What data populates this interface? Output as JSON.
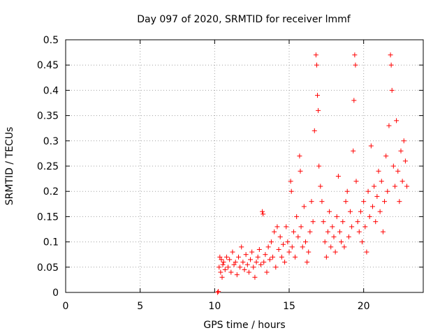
{
  "chart_data": {
    "type": "scatter",
    "title": "Day 097 of 2020, SRMTID for receiver lmmf",
    "xlabel": "GPS time / hours",
    "ylabel": "SRMTID / TECUs",
    "xlim": [
      0,
      24
    ],
    "ylim": [
      0,
      0.5
    ],
    "x_ticks": [
      0,
      5,
      10,
      15,
      20
    ],
    "x_tick_labels": [
      "0",
      "5",
      "10",
      "15",
      "20"
    ],
    "y_ticks": [
      0,
      0.05,
      0.1,
      0.15,
      0.2,
      0.25,
      0.3,
      0.35,
      0.4,
      0.45,
      0.5
    ],
    "y_tick_labels": [
      "0",
      "0.05",
      "0.1",
      "0.15",
      "0.2",
      "0.25",
      "0.3",
      "0.35",
      "0.4",
      "0.45",
      "0.5"
    ],
    "grid": true,
    "marker": "+",
    "series": [
      {
        "name": "SRMTID",
        "color": "#ff0000",
        "points": [
          [
            10.2,
            0.0
          ],
          [
            10.25,
            0.002
          ],
          [
            10.3,
            0.05
          ],
          [
            10.35,
            0.07
          ],
          [
            10.4,
            0.04
          ],
          [
            10.45,
            0.065
          ],
          [
            10.5,
            0.03
          ],
          [
            10.55,
            0.055
          ],
          [
            10.6,
            0.06
          ],
          [
            10.7,
            0.045
          ],
          [
            10.8,
            0.07
          ],
          [
            10.9,
            0.05
          ],
          [
            11.0,
            0.065
          ],
          [
            11.1,
            0.04
          ],
          [
            11.2,
            0.08
          ],
          [
            11.3,
            0.055
          ],
          [
            11.4,
            0.06
          ],
          [
            11.5,
            0.035
          ],
          [
            11.6,
            0.07
          ],
          [
            11.7,
            0.05
          ],
          [
            11.8,
            0.09
          ],
          [
            11.9,
            0.06
          ],
          [
            12.0,
            0.045
          ],
          [
            12.1,
            0.075
          ],
          [
            12.2,
            0.055
          ],
          [
            12.3,
            0.04
          ],
          [
            12.4,
            0.065
          ],
          [
            12.5,
            0.08
          ],
          [
            12.6,
            0.05
          ],
          [
            12.7,
            0.03
          ],
          [
            12.8,
            0.06
          ],
          [
            12.9,
            0.07
          ],
          [
            13.0,
            0.085
          ],
          [
            13.1,
            0.055
          ],
          [
            13.2,
            0.16
          ],
          [
            13.25,
            0.155
          ],
          [
            13.3,
            0.06
          ],
          [
            13.4,
            0.075
          ],
          [
            13.5,
            0.04
          ],
          [
            13.6,
            0.09
          ],
          [
            13.7,
            0.065
          ],
          [
            13.8,
            0.1
          ],
          [
            13.9,
            0.07
          ],
          [
            14.0,
            0.12
          ],
          [
            14.1,
            0.05
          ],
          [
            14.2,
            0.13
          ],
          [
            14.3,
            0.085
          ],
          [
            14.4,
            0.11
          ],
          [
            14.5,
            0.07
          ],
          [
            14.6,
            0.095
          ],
          [
            14.7,
            0.06
          ],
          [
            14.8,
            0.13
          ],
          [
            14.9,
            0.1
          ],
          [
            15.0,
            0.08
          ],
          [
            15.1,
            0.22
          ],
          [
            15.15,
            0.2
          ],
          [
            15.2,
            0.09
          ],
          [
            15.3,
            0.12
          ],
          [
            15.4,
            0.07
          ],
          [
            15.5,
            0.15
          ],
          [
            15.6,
            0.11
          ],
          [
            15.7,
            0.27
          ],
          [
            15.75,
            0.24
          ],
          [
            15.8,
            0.13
          ],
          [
            15.9,
            0.09
          ],
          [
            16.0,
            0.17
          ],
          [
            16.1,
            0.1
          ],
          [
            16.2,
            0.06
          ],
          [
            16.3,
            0.08
          ],
          [
            16.4,
            0.12
          ],
          [
            16.5,
            0.18
          ],
          [
            16.6,
            0.14
          ],
          [
            16.7,
            0.32
          ],
          [
            16.8,
            0.47
          ],
          [
            16.85,
            0.45
          ],
          [
            16.9,
            0.39
          ],
          [
            16.95,
            0.36
          ],
          [
            17.0,
            0.25
          ],
          [
            17.1,
            0.21
          ],
          [
            17.2,
            0.18
          ],
          [
            17.3,
            0.14
          ],
          [
            17.4,
            0.1
          ],
          [
            17.5,
            0.07
          ],
          [
            17.6,
            0.12
          ],
          [
            17.7,
            0.16
          ],
          [
            17.8,
            0.09
          ],
          [
            17.9,
            0.13
          ],
          [
            18.0,
            0.11
          ],
          [
            18.1,
            0.08
          ],
          [
            18.2,
            0.15
          ],
          [
            18.3,
            0.23
          ],
          [
            18.4,
            0.12
          ],
          [
            18.5,
            0.1
          ],
          [
            18.6,
            0.14
          ],
          [
            18.7,
            0.09
          ],
          [
            18.8,
            0.18
          ],
          [
            18.9,
            0.2
          ],
          [
            19.0,
            0.11
          ],
          [
            19.1,
            0.16
          ],
          [
            19.2,
            0.13
          ],
          [
            19.3,
            0.28
          ],
          [
            19.35,
            0.38
          ],
          [
            19.4,
            0.47
          ],
          [
            19.45,
            0.45
          ],
          [
            19.5,
            0.22
          ],
          [
            19.6,
            0.14
          ],
          [
            19.7,
            0.12
          ],
          [
            19.8,
            0.16
          ],
          [
            19.9,
            0.1
          ],
          [
            20.0,
            0.18
          ],
          [
            20.1,
            0.13
          ],
          [
            20.2,
            0.08
          ],
          [
            20.3,
            0.2
          ],
          [
            20.4,
            0.15
          ],
          [
            20.5,
            0.29
          ],
          [
            20.6,
            0.17
          ],
          [
            20.7,
            0.21
          ],
          [
            20.8,
            0.14
          ],
          [
            20.9,
            0.19
          ],
          [
            21.0,
            0.24
          ],
          [
            21.1,
            0.16
          ],
          [
            21.2,
            0.22
          ],
          [
            21.3,
            0.12
          ],
          [
            21.4,
            0.18
          ],
          [
            21.5,
            0.27
          ],
          [
            21.6,
            0.2
          ],
          [
            21.7,
            0.33
          ],
          [
            21.8,
            0.47
          ],
          [
            21.85,
            0.45
          ],
          [
            21.9,
            0.4
          ],
          [
            22.0,
            0.25
          ],
          [
            22.1,
            0.21
          ],
          [
            22.2,
            0.34
          ],
          [
            22.3,
            0.24
          ],
          [
            22.4,
            0.18
          ],
          [
            22.5,
            0.28
          ],
          [
            22.6,
            0.22
          ],
          [
            22.7,
            0.3
          ],
          [
            22.8,
            0.26
          ],
          [
            22.9,
            0.21
          ]
        ]
      }
    ]
  }
}
